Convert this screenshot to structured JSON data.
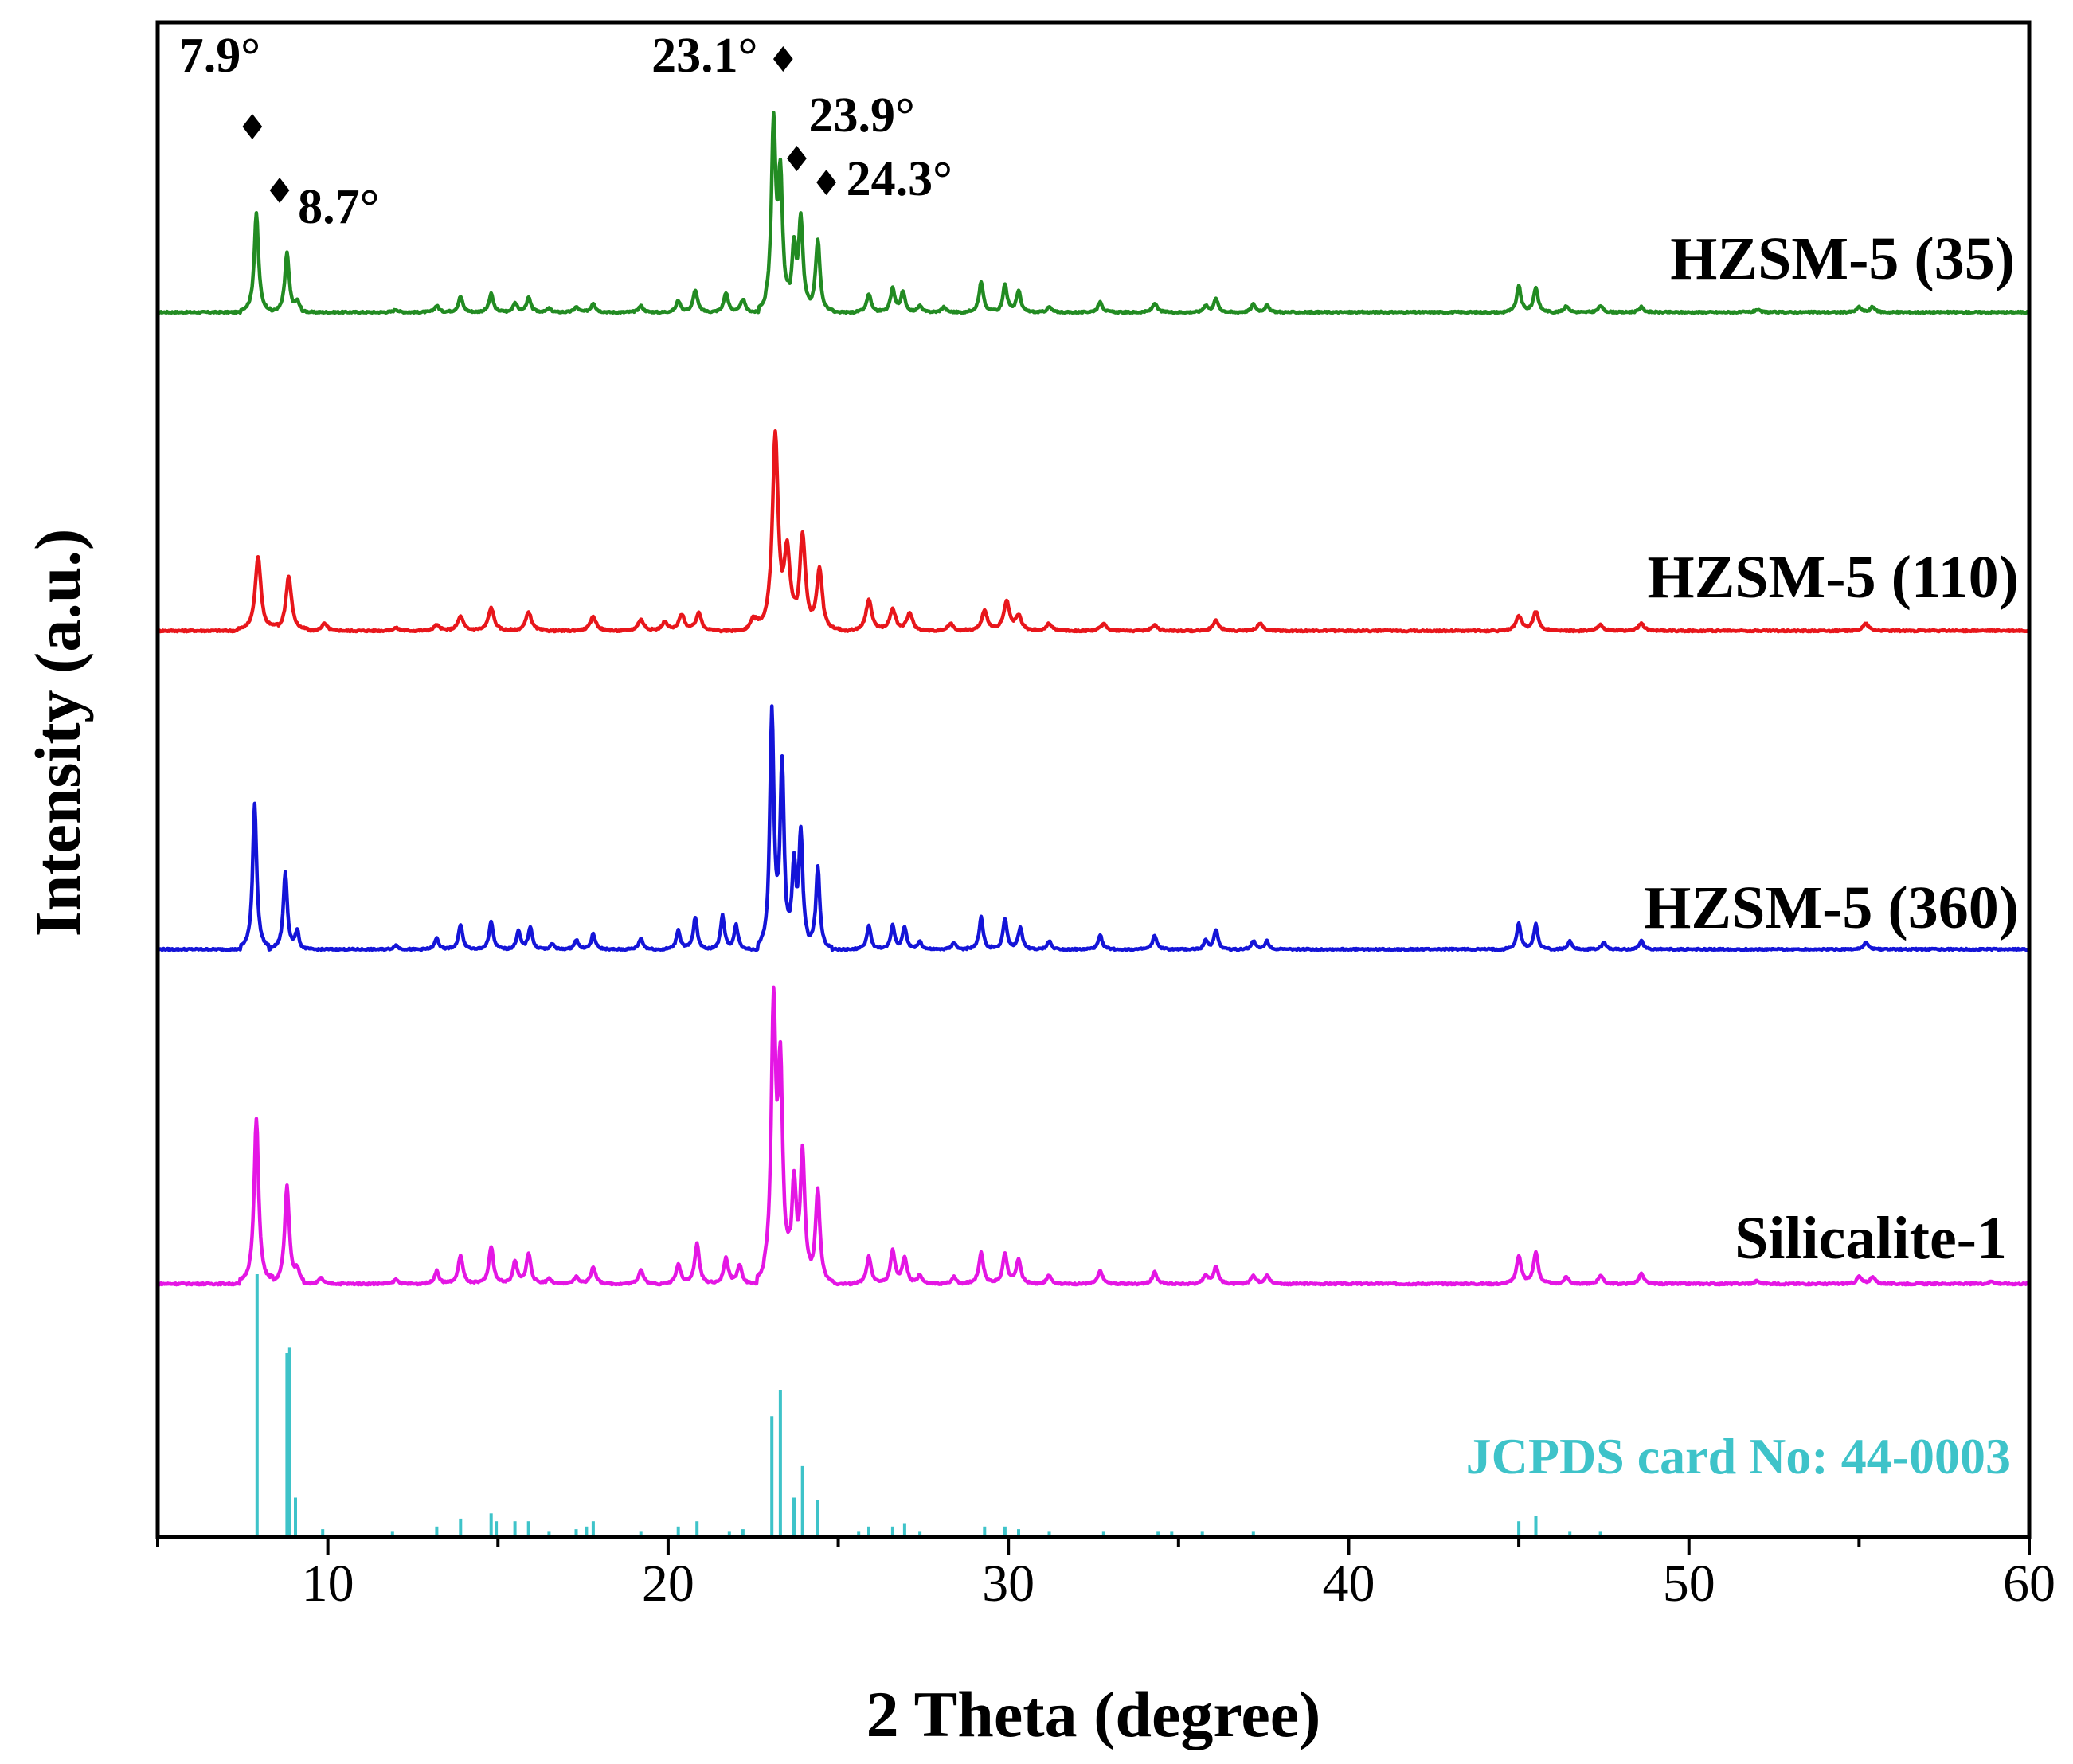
{
  "chart_data": {
    "type": "line",
    "title": "",
    "xlabel": "2 Theta (degree)",
    "ylabel": "Intensity (a.u.)",
    "xlim": [
      5,
      60
    ],
    "xticks": [
      10,
      20,
      30,
      40,
      50,
      60
    ],
    "xtick_labels": [
      "10",
      "20",
      "30",
      "40",
      "50",
      "60"
    ],
    "grid": false,
    "legend": "none",
    "series": [
      {
        "name": "HZSM-5 (35)",
        "label": "HZSM-5 (35)",
        "color": "#228B22",
        "peaks": [
          [
            7.9,
            75
          ],
          [
            8.8,
            45
          ],
          [
            9.1,
            7
          ],
          [
            12.0,
            2
          ],
          [
            13.2,
            5
          ],
          [
            13.9,
            12
          ],
          [
            14.8,
            14
          ],
          [
            15.5,
            7
          ],
          [
            15.9,
            11
          ],
          [
            16.5,
            3
          ],
          [
            17.3,
            4
          ],
          [
            17.8,
            7
          ],
          [
            19.2,
            5
          ],
          [
            20.3,
            9
          ],
          [
            20.8,
            17
          ],
          [
            21.7,
            15
          ],
          [
            22.2,
            10
          ],
          [
            23.1,
            140
          ],
          [
            23.3,
            98
          ],
          [
            23.7,
            45
          ],
          [
            23.9,
            70
          ],
          [
            24.4,
            56
          ],
          [
            25.9,
            14
          ],
          [
            26.6,
            18
          ],
          [
            26.9,
            15
          ],
          [
            27.4,
            5
          ],
          [
            28.1,
            4
          ],
          [
            29.2,
            23
          ],
          [
            29.9,
            21
          ],
          [
            30.3,
            16
          ],
          [
            31.2,
            4
          ],
          [
            32.7,
            8
          ],
          [
            34.3,
            7
          ],
          [
            35.8,
            5
          ],
          [
            36.1,
            10
          ],
          [
            37.2,
            6
          ],
          [
            37.6,
            5
          ],
          [
            45.0,
            20
          ],
          [
            45.5,
            19
          ],
          [
            46.4,
            5
          ],
          [
            47.4,
            5
          ],
          [
            48.6,
            4
          ],
          [
            52.0,
            2
          ],
          [
            55.0,
            4
          ],
          [
            55.4,
            4
          ]
        ],
        "annotations": [
          {
            "x": 7.9,
            "text": "7.9°",
            "marker": "♦"
          },
          {
            "x": 8.7,
            "text": "8.7°",
            "marker": "♦"
          },
          {
            "x": 23.1,
            "text": "23.1°",
            "marker": "♦"
          },
          {
            "x": 23.9,
            "text": "23.9°",
            "marker": "♦"
          },
          {
            "x": 24.3,
            "text": "24.3°",
            "marker": "♦"
          }
        ]
      },
      {
        "name": "HZSM-5 (110)",
        "label": "HZSM-5 (110)",
        "color": "#E8161B",
        "peaks": [
          [
            7.95,
            52
          ],
          [
            8.85,
            38
          ],
          [
            9.9,
            5
          ],
          [
            12.0,
            2
          ],
          [
            13.2,
            4
          ],
          [
            13.9,
            10
          ],
          [
            14.8,
            16
          ],
          [
            15.9,
            13
          ],
          [
            17.8,
            10
          ],
          [
            19.2,
            8
          ],
          [
            19.9,
            6
          ],
          [
            20.4,
            11
          ],
          [
            20.9,
            12
          ],
          [
            22.5,
            10
          ],
          [
            23.15,
            135
          ],
          [
            23.5,
            50
          ],
          [
            23.95,
            65
          ],
          [
            24.45,
            42
          ],
          [
            25.9,
            22
          ],
          [
            26.6,
            15
          ],
          [
            27.1,
            12
          ],
          [
            28.3,
            5
          ],
          [
            29.3,
            14
          ],
          [
            29.95,
            20
          ],
          [
            30.3,
            10
          ],
          [
            31.2,
            5
          ],
          [
            32.8,
            5
          ],
          [
            34.3,
            4
          ],
          [
            36.1,
            7
          ],
          [
            37.4,
            5
          ],
          [
            45.0,
            10
          ],
          [
            45.5,
            13
          ],
          [
            47.4,
            4
          ],
          [
            48.6,
            5
          ],
          [
            55.2,
            5
          ]
        ]
      },
      {
        "name": "HZSM-5 (360)",
        "label": "HZSM-5 (360)",
        "color": "#1414D8",
        "peaks": [
          [
            7.85,
            105
          ],
          [
            8.75,
            55
          ],
          [
            9.1,
            12
          ],
          [
            12.0,
            3
          ],
          [
            13.2,
            8
          ],
          [
            13.9,
            18
          ],
          [
            14.8,
            20
          ],
          [
            15.6,
            13
          ],
          [
            15.95,
            16
          ],
          [
            16.6,
            4
          ],
          [
            17.3,
            7
          ],
          [
            17.8,
            11
          ],
          [
            19.2,
            8
          ],
          [
            20.3,
            14
          ],
          [
            20.8,
            23
          ],
          [
            21.6,
            24
          ],
          [
            22.0,
            17
          ],
          [
            23.05,
            168
          ],
          [
            23.35,
            128
          ],
          [
            23.7,
            55
          ],
          [
            23.9,
            82
          ],
          [
            24.4,
            60
          ],
          [
            25.9,
            17
          ],
          [
            26.6,
            17
          ],
          [
            26.95,
            16
          ],
          [
            27.4,
            6
          ],
          [
            28.4,
            5
          ],
          [
            29.2,
            23
          ],
          [
            29.9,
            22
          ],
          [
            30.35,
            16
          ],
          [
            31.2,
            6
          ],
          [
            32.7,
            10
          ],
          [
            34.3,
            10
          ],
          [
            35.8,
            6
          ],
          [
            36.1,
            14
          ],
          [
            37.2,
            6
          ],
          [
            37.6,
            6
          ],
          [
            45.0,
            19
          ],
          [
            45.5,
            18
          ],
          [
            46.5,
            6
          ],
          [
            47.5,
            5
          ],
          [
            48.6,
            6
          ],
          [
            55.2,
            5
          ]
        ]
      },
      {
        "name": "Silicalite-1",
        "label": "Silicalite-1",
        "color": "#E416E4",
        "peaks": [
          [
            7.9,
            115
          ],
          [
            8.8,
            68
          ],
          [
            9.1,
            8
          ],
          [
            9.8,
            4
          ],
          [
            12.0,
            3
          ],
          [
            13.2,
            9
          ],
          [
            13.9,
            20
          ],
          [
            14.8,
            26
          ],
          [
            15.5,
            15
          ],
          [
            15.9,
            21
          ],
          [
            16.5,
            4
          ],
          [
            17.3,
            5
          ],
          [
            17.8,
            12
          ],
          [
            19.2,
            10
          ],
          [
            20.3,
            14
          ],
          [
            20.85,
            28
          ],
          [
            21.7,
            18
          ],
          [
            22.1,
            13
          ],
          [
            23.1,
            188
          ],
          [
            23.3,
            140
          ],
          [
            23.7,
            65
          ],
          [
            23.95,
            88
          ],
          [
            24.4,
            64
          ],
          [
            25.9,
            19
          ],
          [
            26.6,
            23
          ],
          [
            26.95,
            18
          ],
          [
            27.4,
            6
          ],
          [
            28.4,
            5
          ],
          [
            29.2,
            22
          ],
          [
            29.9,
            21
          ],
          [
            30.3,
            17
          ],
          [
            31.2,
            6
          ],
          [
            32.7,
            9
          ],
          [
            34.3,
            8
          ],
          [
            35.8,
            6
          ],
          [
            36.1,
            12
          ],
          [
            37.2,
            6
          ],
          [
            37.6,
            6
          ],
          [
            45.0,
            20
          ],
          [
            45.5,
            22
          ],
          [
            46.4,
            5
          ],
          [
            47.4,
            6
          ],
          [
            48.6,
            7
          ],
          [
            52.0,
            2
          ],
          [
            55.0,
            5
          ],
          [
            55.4,
            5
          ],
          [
            58.9,
            2
          ]
        ]
      }
    ],
    "reference": {
      "name": "JCPDS card No: 44-0003",
      "label": "JCPDS card No: 44-0003",
      "color": "#3EC3C9",
      "sticks": [
        [
          7.92,
          100
        ],
        [
          8.8,
          70
        ],
        [
          8.88,
          72
        ],
        [
          9.05,
          15
        ],
        [
          9.85,
          3
        ],
        [
          11.9,
          2
        ],
        [
          13.2,
          4
        ],
        [
          13.9,
          7
        ],
        [
          14.8,
          9
        ],
        [
          14.95,
          6
        ],
        [
          15.5,
          6
        ],
        [
          15.9,
          6
        ],
        [
          16.5,
          2
        ],
        [
          17.3,
          3
        ],
        [
          17.6,
          4
        ],
        [
          17.8,
          6
        ],
        [
          19.2,
          2
        ],
        [
          20.3,
          4
        ],
        [
          20.85,
          6
        ],
        [
          21.8,
          2
        ],
        [
          22.2,
          3
        ],
        [
          23.05,
          46
        ],
        [
          23.3,
          56
        ],
        [
          23.7,
          15
        ],
        [
          23.95,
          27
        ],
        [
          24.4,
          14
        ],
        [
          25.6,
          2
        ],
        [
          25.9,
          4
        ],
        [
          26.6,
          4
        ],
        [
          26.95,
          5
        ],
        [
          27.4,
          2
        ],
        [
          29.3,
          4
        ],
        [
          29.9,
          4
        ],
        [
          30.3,
          3
        ],
        [
          31.2,
          2
        ],
        [
          32.8,
          2
        ],
        [
          34.4,
          2
        ],
        [
          34.8,
          2
        ],
        [
          35.7,
          2
        ],
        [
          37.2,
          2
        ],
        [
          45.0,
          6
        ],
        [
          45.5,
          8
        ],
        [
          46.5,
          2
        ],
        [
          47.4,
          2
        ]
      ]
    }
  }
}
